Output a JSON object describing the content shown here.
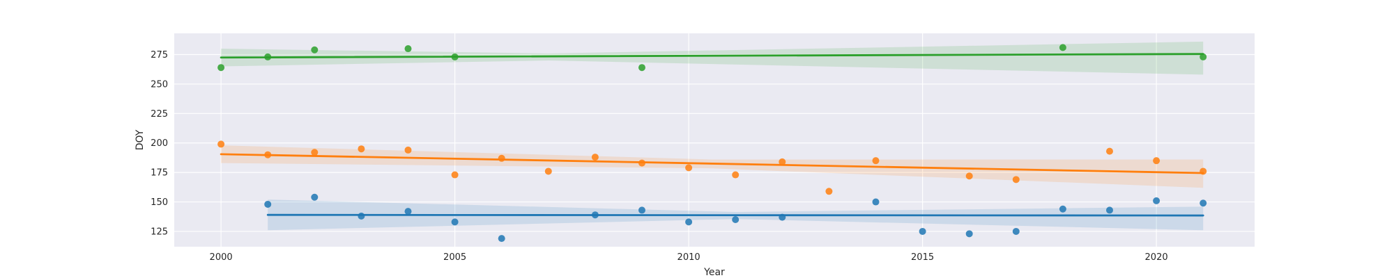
{
  "chart_data": {
    "type": "scatter",
    "xlabel": "Year",
    "ylabel": "DOY",
    "xlim": [
      1999,
      2022.1
    ],
    "ylim": [
      112,
      293
    ],
    "xticks": [
      2000,
      2005,
      2010,
      2015,
      2020
    ],
    "yticks": [
      125,
      150,
      175,
      200,
      225,
      250,
      275
    ],
    "grid": true,
    "background": "#eaeaf2",
    "series": [
      {
        "color": "#1f77b4",
        "points": [
          [
            2001,
            148
          ],
          [
            2002,
            154
          ],
          [
            2003,
            138
          ],
          [
            2004,
            142
          ],
          [
            2005,
            133
          ],
          [
            2006,
            119
          ],
          [
            2008,
            139
          ],
          [
            2009,
            143
          ],
          [
            2010,
            133
          ],
          [
            2011,
            135
          ],
          [
            2012,
            137
          ],
          [
            2014,
            150
          ],
          [
            2015,
            125
          ],
          [
            2016,
            123
          ],
          [
            2017,
            125
          ],
          [
            2018,
            144
          ],
          [
            2019,
            143
          ],
          [
            2020,
            151
          ],
          [
            2021,
            149
          ]
        ],
        "trend": {
          "x": [
            2001,
            2021
          ],
          "y": [
            139,
            138.5
          ]
        },
        "band": {
          "x": [
            2001,
            2011,
            2021
          ],
          "upper": [
            152,
            141.5,
            146
          ],
          "lower": [
            126,
            135.5,
            126
          ]
        }
      },
      {
        "color": "#ff7f0e",
        "points": [
          [
            2000,
            199
          ],
          [
            2001,
            190
          ],
          [
            2002,
            192
          ],
          [
            2003,
            195
          ],
          [
            2004,
            194
          ],
          [
            2005,
            173
          ],
          [
            2006,
            187
          ],
          [
            2007,
            176
          ],
          [
            2008,
            188
          ],
          [
            2009,
            183
          ],
          [
            2010,
            179
          ],
          [
            2011,
            173
          ],
          [
            2012,
            184
          ],
          [
            2013,
            159
          ],
          [
            2014,
            185
          ],
          [
            2016,
            172
          ],
          [
            2017,
            169
          ],
          [
            2019,
            193
          ],
          [
            2020,
            185
          ],
          [
            2021,
            176
          ]
        ],
        "trend": {
          "x": [
            2000,
            2021
          ],
          "y": [
            190.5,
            174.5
          ]
        },
        "band": {
          "x": [
            2000,
            2010.5,
            2021
          ],
          "upper": [
            198,
            186,
            186
          ],
          "lower": [
            183,
            178.5,
            162
          ]
        }
      },
      {
        "color": "#2ca02c",
        "points": [
          [
            2000,
            264
          ],
          [
            2001,
            273
          ],
          [
            2002,
            279
          ],
          [
            2004,
            280
          ],
          [
            2005,
            273
          ],
          [
            2009,
            264
          ],
          [
            2018,
            281
          ],
          [
            2021,
            273
          ]
        ],
        "trend": {
          "x": [
            2000,
            2021
          ],
          "y": [
            272.5,
            275.5
          ]
        },
        "band": {
          "x": [
            2000,
            2007,
            2021
          ],
          "upper": [
            280,
            276,
            286
          ],
          "lower": [
            265,
            270,
            258
          ]
        }
      }
    ]
  }
}
